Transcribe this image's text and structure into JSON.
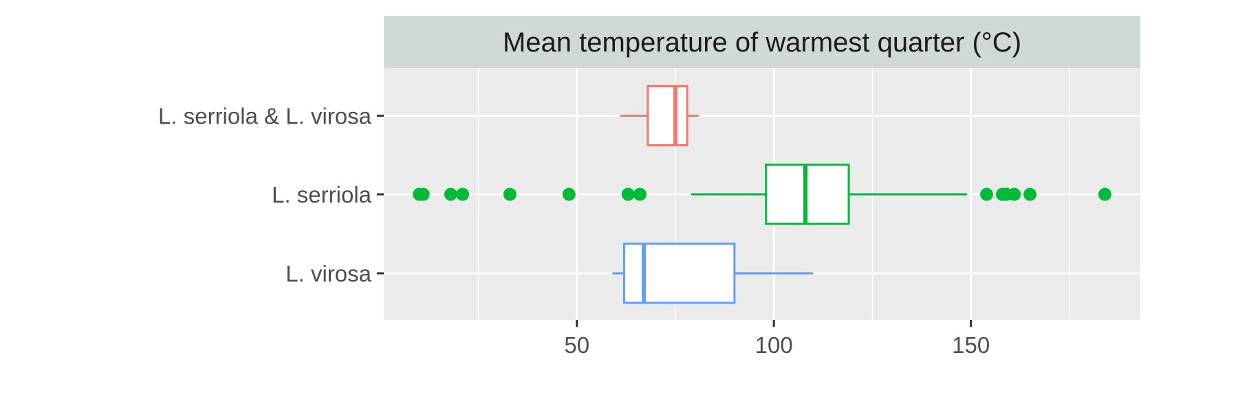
{
  "chart_data": {
    "type": "boxplot",
    "title": "Mean temperature of warmest quarter (°C)",
    "xlabel": "",
    "ylabel": "",
    "xlim": [
      1,
      193
    ],
    "x_ticks": [
      50,
      100,
      150
    ],
    "x_minor_ticks": [
      25,
      75,
      125,
      175
    ],
    "grid": true,
    "legend": "none",
    "categories": [
      "L. serriola & L. virosa",
      "L. serriola",
      "L. virosa"
    ],
    "colors": {
      "L. serriola & L. virosa": "#F8766D",
      "L. serriola": "#00BA38",
      "L. virosa": "#619CFF"
    },
    "series": [
      {
        "category": "L. serriola & L. virosa",
        "whisker_low": 61,
        "q1": 68,
        "median": 75,
        "q3": 78,
        "whisker_high": 81,
        "outliers": []
      },
      {
        "category": "L. serriola",
        "whisker_low": 79,
        "q1": 98,
        "median": 108,
        "q3": 119,
        "whisker_high": 149,
        "outliers": [
          10,
          11,
          18,
          21,
          33,
          48,
          63,
          66,
          154,
          158,
          159,
          161,
          165,
          184
        ]
      },
      {
        "category": "L. virosa",
        "whisker_low": 59,
        "q1": 62,
        "median": 67,
        "q3": 90,
        "whisker_high": 110,
        "outliers": []
      }
    ]
  }
}
